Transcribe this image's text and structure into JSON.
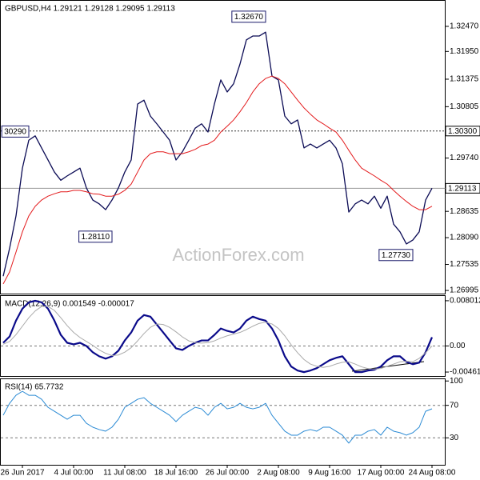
{
  "chart_data": [
    {
      "type": "line",
      "title": "GBPUSD,H4  1.29121 1.29128 1.29095 1.29113",
      "xlim": [
        0,
        68.875
      ],
      "ylim": [
        1.2693,
        1.33
      ],
      "yticks": [
        {
          "value": 1.3247,
          "label": "1.32470"
        },
        {
          "value": 1.3195,
          "label": "1.31950"
        },
        1.31375,
        1.30805,
        {
          "value": 1.2974,
          "label": "1.29740"
        },
        1.28635,
        {
          "value": 1.2809,
          "label": "1.28090"
        },
        1.27535,
        1.26995
      ],
      "series": [
        {
          "color": "#0b0b55",
          "width": 1.3,
          "values": [
            1.2729,
            1.2787,
            1.2854,
            1.2953,
            1.3011,
            1.302,
            1.2995,
            1.297,
            1.2945,
            1.2928,
            1.2937,
            1.2945,
            1.2953,
            1.2912,
            1.2887,
            1.2879,
            1.2867,
            1.2887,
            1.2912,
            1.2945,
            1.297,
            1.3086,
            1.3094,
            1.3061,
            1.3045,
            1.3028,
            1.3011,
            1.297,
            1.2987,
            1.3011,
            1.3036,
            1.3045,
            1.3028,
            1.3086,
            1.3136,
            1.3111,
            1.3128,
            1.3169,
            1.3219,
            1.3227,
            1.3227,
            1.3235,
            1.3144,
            1.3136,
            1.3061,
            1.3045,
            1.3053,
            1.2995,
            1.3003,
            1.2995,
            1.3003,
            1.3011,
            1.2995,
            1.2962,
            1.2862,
            1.2879,
            1.2887,
            1.2879,
            1.2895,
            1.287,
            1.2895,
            1.2837,
            1.2821,
            1.2796,
            1.2804,
            1.2821,
            1.2887,
            1.29113
          ]
        },
        {
          "color": "#e31a1c",
          "width": 1,
          "values": [
            1.2713,
            1.2738,
            1.2779,
            1.2821,
            1.2854,
            1.2874,
            1.2887,
            1.2895,
            1.29,
            1.2904,
            1.2904,
            1.2907,
            1.2907,
            1.2904,
            1.29,
            1.2899,
            1.2895,
            1.2895,
            1.2899,
            1.2907,
            1.292,
            1.2945,
            1.297,
            1.2983,
            1.2987,
            1.2987,
            1.2983,
            1.2983,
            1.2983,
            1.2987,
            1.2992,
            1.3,
            1.3003,
            1.3011,
            1.3028,
            1.304,
            1.3053,
            1.307,
            1.3089,
            1.3111,
            1.3128,
            1.3139,
            1.3144,
            1.3139,
            1.3128,
            1.3111,
            1.3094,
            1.3078,
            1.3065,
            1.3053,
            1.3045,
            1.3036,
            1.3028,
            1.3011,
            1.299,
            1.297,
            1.2953,
            1.2945,
            1.2937,
            1.2928,
            1.292,
            1.2907,
            1.2895,
            1.2884,
            1.2874,
            1.2867,
            1.2867,
            1.2874
          ]
        }
      ],
      "hlines": [
        {
          "value": 1.303,
          "label": "1.30300",
          "color": "#333333",
          "dash": true
        },
        {
          "value": 1.29113,
          "color": "#999999",
          "dash": false
        }
      ],
      "annotations": [
        {
          "text": "1.32670",
          "x": 41,
          "y": 1.3267
        },
        {
          "text": "1.28110",
          "x": 17,
          "y": 1.2811
        },
        {
          "text": "1.27730",
          "x": 64,
          "y": 1.2773
        },
        {
          "text": "30290",
          "x": 4,
          "y": 1.3029
        }
      ],
      "watermark": "ActionForex.com"
    },
    {
      "type": "line",
      "title": "MACD(12,26,9) 0.001549 -0.000017",
      "xlim": [
        0,
        68.875
      ],
      "ylim": [
        -0.00532,
        0.00885
      ],
      "yticks": [
        0.008012,
        {
          "value": 0,
          "label": "0.00"
        },
        -0.004619
      ],
      "levels": [
        0
      ],
      "series": [
        {
          "color": "#0a0a8a",
          "width": 2.2,
          "values": [
            0.00056,
            0.00168,
            0.00449,
            0.0066,
            0.00772,
            0.008,
            0.00772,
            0.0066,
            0.00449,
            0.00196,
            0.00056,
            0.00028,
            0.00056,
            0,
            -0.00112,
            -0.00183,
            -0.00225,
            -0.00183,
            -0.00084,
            0.00098,
            0.00239,
            0.00449,
            0.00548,
            0.00519,
            0.00379,
            0.00239,
            0.00098,
            -0.00042,
            -0.0007,
            0,
            0.00056,
            0.00098,
            0.00098,
            0.00196,
            0.00309,
            0.00267,
            0.00239,
            0.00309,
            0.00449,
            0.00519,
            0.00477,
            0.00449,
            0.00309,
            0.00098,
            -0.00183,
            -0.00365,
            -0.00435,
            -0.00463,
            -0.00435,
            -0.00393,
            -0.00323,
            -0.00253,
            -0.00211,
            -0.00183,
            -0.00323,
            -0.00463,
            -0.00463,
            -0.00435,
            -0.00421,
            -0.00365,
            -0.00253,
            -0.00183,
            -0.00183,
            -0.00281,
            -0.00323,
            -0.00295,
            -0.00112,
            0.00155
          ]
        },
        {
          "color": "#aaaaaa",
          "width": 1,
          "values": [
            0.0003,
            0.0008,
            0.002,
            0.0035,
            0.005,
            0.0062,
            0.007,
            0.007,
            0.0063,
            0.005,
            0.0036,
            0.0024,
            0.0015,
            0.0008,
            0.0001,
            -0.0007,
            -0.0013,
            -0.0017,
            -0.0016,
            -0.0011,
            -0.0003,
            0.0009,
            0.0022,
            0.0033,
            0.0039,
            0.0038,
            0.0033,
            0.0025,
            0.0016,
            0.0009,
            0.0006,
            0.0005,
            0.0006,
            0.0009,
            0.0014,
            0.0018,
            0.0021,
            0.0024,
            0.0029,
            0.0035,
            0.004,
            0.0042,
            0.0039,
            0.0031,
            0.0018,
            0.0002,
            -0.0012,
            -0.0024,
            -0.0032,
            -0.0036,
            -0.0038,
            -0.0036,
            -0.0032,
            -0.0029,
            -0.0028,
            -0.0032,
            -0.0037,
            -0.004,
            -0.0041,
            -0.004,
            -0.0036,
            -0.0032,
            -0.0028,
            -0.0027,
            -0.0028,
            -0.0022,
            -0.0012,
            -2e-05
          ]
        }
      ]
    },
    {
      "type": "line",
      "title": "RSI(14) 65.7732",
      "xlim": [
        0,
        68.875
      ],
      "ylim": [
        -3.2,
        102.2
      ],
      "yticks": [
        100,
        70,
        30
      ],
      "levels": [
        70,
        30
      ],
      "xticks": [
        {
          "value": 3,
          "label": "26 Jun 2017"
        },
        {
          "value": 11,
          "label": "4 Jul 00:00"
        },
        {
          "value": 19,
          "label": "11 Jul 08:00"
        },
        {
          "value": 27,
          "label": "18 Jul 16:00"
        },
        {
          "value": 35,
          "label": "26 Jul 00:00"
        },
        {
          "value": 43,
          "label": "2 Aug 08:00"
        },
        {
          "value": 51,
          "label": "9 Aug 16:00"
        },
        {
          "value": 59,
          "label": "17 Aug 00:00"
        },
        {
          "value": 67,
          "label": "24 Aug 08:00"
        }
      ],
      "series": [
        {
          "color": "#2a8ad4",
          "width": 1,
          "values": [
            57.8,
            72.5,
            82.4,
            87.3,
            82.4,
            82.4,
            77.5,
            67.6,
            62.7,
            57.8,
            52.9,
            57.8,
            57.8,
            48.0,
            43.1,
            40.2,
            38.2,
            43.1,
            52.9,
            67.6,
            72.5,
            77.5,
            79.4,
            72.5,
            67.6,
            62.7,
            57.8,
            50.0,
            57.8,
            62.7,
            67.6,
            65.7,
            57.8,
            67.6,
            72.5,
            65.7,
            67.6,
            72.5,
            67.6,
            65.7,
            67.6,
            72.5,
            57.8,
            48.0,
            38.2,
            33.3,
            33.3,
            38.2,
            40.2,
            38.2,
            43.1,
            43.1,
            38.2,
            33.3,
            23.5,
            33.3,
            33.3,
            38.2,
            40.2,
            33.3,
            43.1,
            38.2,
            36.3,
            33.3,
            36.3,
            43.1,
            62.7,
            65.77
          ]
        }
      ]
    }
  ]
}
